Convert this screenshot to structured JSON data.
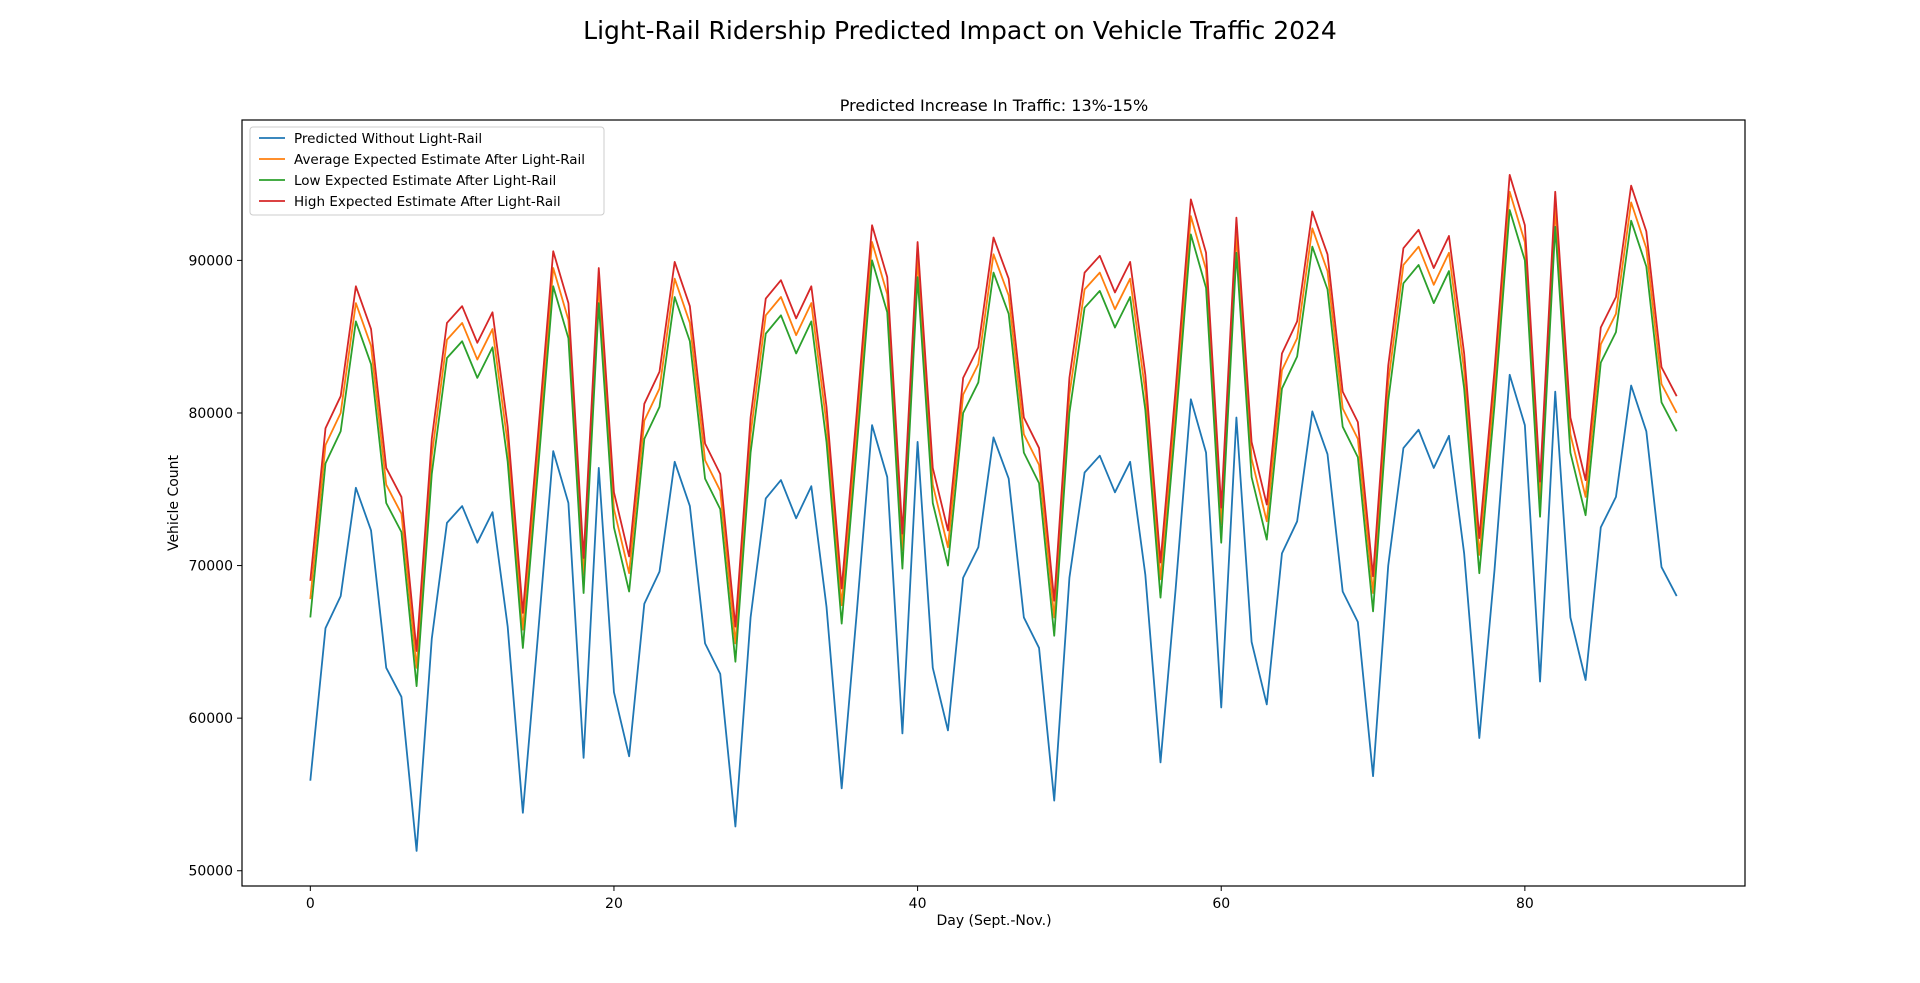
{
  "chart_data": {
    "type": "line",
    "title": "Light-Rail Ridership Predicted Impact on Vehicle Traffic 2024",
    "subtitle": "Predicted Increase In Traffic: 13%-15%",
    "xlabel": "Day (Sept.-Nov.)",
    "ylabel": "Vehicle Count",
    "xlim": [
      -4.5,
      94.5
    ],
    "ylim": [
      49000,
      99200
    ],
    "xticks": [
      0,
      20,
      40,
      60,
      80
    ],
    "yticks": [
      50000,
      60000,
      70000,
      80000,
      90000
    ],
    "grid": false,
    "legend_position": "upper-left",
    "series": [
      {
        "name": "Predicted Without Light-Rail",
        "color": "#1f77b4",
        "values": [
          55900,
          65900,
          68000,
          75100,
          72300,
          63300,
          61400,
          51300,
          65200,
          72800,
          73900,
          71500,
          73500,
          66000,
          53800,
          65500,
          77500,
          74100,
          57400,
          76400,
          61700,
          57500,
          67500,
          69600,
          76800,
          73900,
          64900,
          62900,
          52900,
          66600,
          74400,
          75600,
          73100,
          75200,
          67300,
          55400,
          67000,
          79200,
          75800,
          59000,
          78100,
          63300,
          59200,
          69200,
          71200,
          78400,
          75700,
          66600,
          64600,
          54600,
          69200,
          76100,
          77200,
          74800,
          76800,
          69400,
          57100,
          68500,
          80900,
          77400,
          60700,
          79700,
          65000,
          60900,
          70800,
          72900,
          80100,
          77300,
          68300,
          66300,
          56200,
          70000,
          77700,
          78900,
          76400,
          78500,
          70800,
          58700,
          69700,
          82500,
          79200,
          62400,
          81400,
          66600,
          62500,
          72500,
          74500,
          81800,
          78800,
          69900,
          68000
        ]
      },
      {
        "name": "Average Expected Estimate After Light-Rail",
        "color": "#ff7f0e",
        "values": [
          67800,
          77900,
          80000,
          87200,
          84400,
          75300,
          73400,
          63300,
          77200,
          84800,
          85900,
          83500,
          85500,
          78000,
          65800,
          77500,
          89500,
          86100,
          69400,
          88400,
          73700,
          69500,
          79500,
          81600,
          88800,
          85900,
          76900,
          74900,
          64900,
          78600,
          86400,
          87600,
          85100,
          87200,
          79300,
          67400,
          79000,
          91200,
          87800,
          71000,
          90100,
          75300,
          71200,
          81200,
          83200,
          90400,
          87700,
          78600,
          76600,
          66600,
          81200,
          88100,
          89200,
          86800,
          88800,
          81400,
          69100,
          80500,
          92900,
          89400,
          72700,
          91700,
          77000,
          72900,
          82800,
          84900,
          92100,
          89300,
          80300,
          78300,
          68200,
          82000,
          89700,
          90900,
          88400,
          90500,
          82800,
          70700,
          81700,
          94500,
          91200,
          74400,
          93400,
          78600,
          74500,
          84500,
          86500,
          93800,
          90800,
          81900,
          80000
        ]
      },
      {
        "name": "Low Expected Estimate After Light-Rail",
        "color": "#2ca02c",
        "values": [
          66600,
          76700,
          78800,
          86000,
          83200,
          74100,
          72200,
          62100,
          76000,
          83600,
          84700,
          82300,
          84300,
          76800,
          64600,
          76300,
          88300,
          84900,
          68200,
          87200,
          72500,
          68300,
          78300,
          80400,
          87600,
          84700,
          75700,
          73700,
          63700,
          77400,
          85200,
          86400,
          83900,
          86000,
          78100,
          66200,
          77800,
          90000,
          86600,
          69800,
          88900,
          74100,
          70000,
          80000,
          82000,
          89200,
          86500,
          77400,
          75400,
          65400,
          80000,
          86900,
          88000,
          85600,
          87600,
          80200,
          67900,
          79300,
          91700,
          88200,
          71500,
          90500,
          75800,
          71700,
          81600,
          83700,
          90900,
          88100,
          79100,
          77100,
          67000,
          80800,
          88500,
          89700,
          87200,
          89300,
          81600,
          69500,
          80500,
          93300,
          90000,
          73200,
          92200,
          77400,
          73300,
          83300,
          85300,
          92600,
          89600,
          80700,
          78800
        ]
      },
      {
        "name": "High Expected Estimate After Light-Rail",
        "color": "#d62728",
        "values": [
          69000,
          79000,
          81100,
          88300,
          85500,
          76400,
          74500,
          64400,
          78300,
          85900,
          87000,
          84600,
          86600,
          79100,
          66900,
          78600,
          90600,
          87200,
          70500,
          89500,
          74800,
          70600,
          80600,
          82700,
          89900,
          87000,
          78000,
          76000,
          66000,
          79700,
          87500,
          88700,
          86200,
          88300,
          80400,
          68500,
          80100,
          92300,
          88900,
          72100,
          91200,
          76400,
          72300,
          82300,
          84300,
          91500,
          88800,
          79700,
          77700,
          67700,
          82300,
          89200,
          90300,
          87900,
          89900,
          82500,
          70200,
          81600,
          94000,
          90500,
          73800,
          92800,
          78100,
          74000,
          83900,
          86000,
          93200,
          90400,
          81400,
          79400,
          69300,
          83100,
          90800,
          92000,
          89500,
          91600,
          83900,
          71800,
          82800,
          95600,
          92300,
          75500,
          94500,
          79700,
          75600,
          85600,
          87600,
          94900,
          91900,
          83000,
          81100
        ]
      }
    ]
  }
}
